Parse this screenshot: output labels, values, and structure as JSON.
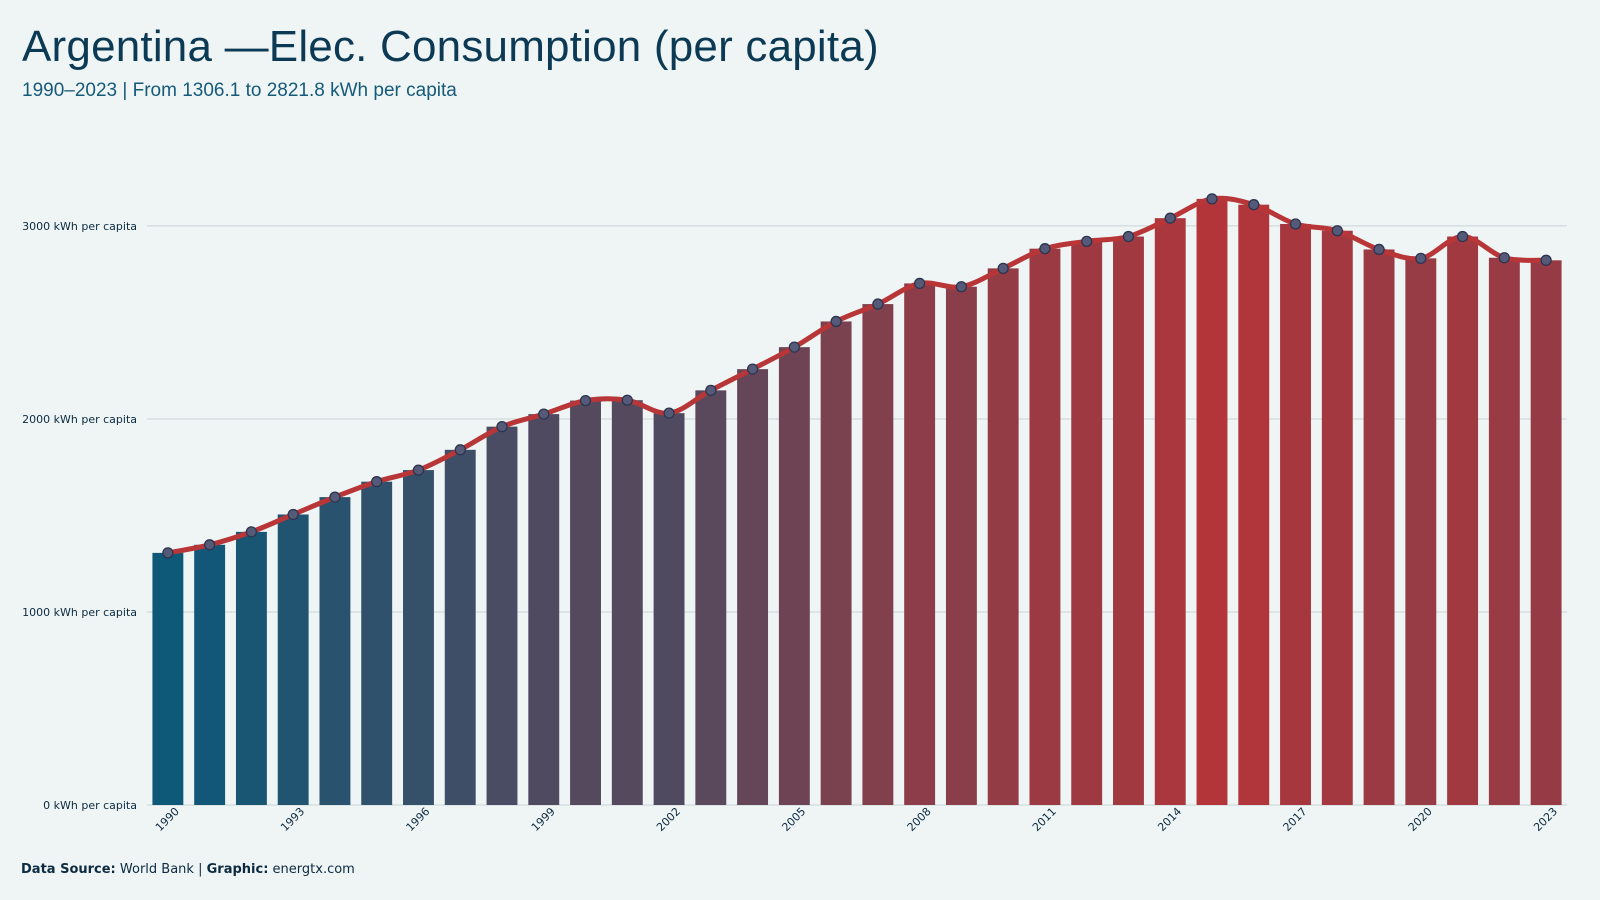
{
  "title": "Argentina —Elec. Consumption (per capita)",
  "subtitle": "1990–2023 | From 1306.1  to 2821.8  kWh per capita",
  "caption": {
    "source_label": "Data Source:",
    "source_value": "World Bank",
    "separator": "|",
    "graphic_label": "Graphic:",
    "graphic_value": "energtx.com"
  },
  "colors": {
    "background": "#eff5f5",
    "bar_start": "#0e5878",
    "bar_end": "#b3353a",
    "line": "#b83638",
    "marker_fill": "#555a78",
    "marker_stroke": "#2c3550",
    "grid": "#c9d2d6",
    "text": "#0c2a40"
  },
  "chart_data": {
    "type": "bar",
    "overlay": "line",
    "unit": "kWh per capita",
    "x": [
      1990,
      1991,
      1992,
      1993,
      1994,
      1995,
      1996,
      1997,
      1998,
      1999,
      2000,
      2001,
      2002,
      2003,
      2004,
      2005,
      2006,
      2007,
      2008,
      2009,
      2010,
      2011,
      2012,
      2013,
      2014,
      2015,
      2016,
      2017,
      2018,
      2019,
      2020,
      2021,
      2022,
      2023
    ],
    "values": [
      1306.1,
      1348,
      1415,
      1505,
      1595,
      1675,
      1735,
      1840,
      1960,
      2025,
      2095,
      2097,
      2030,
      2148,
      2258,
      2372,
      2505,
      2595,
      2702,
      2685,
      2780,
      2882,
      2920,
      2945,
      3040,
      3140,
      3110,
      3010,
      2975,
      2878,
      2832,
      2945,
      2835,
      2821.8
    ],
    "x_tick_labels": [
      "1990",
      "1993",
      "1996",
      "1999",
      "2002",
      "2005",
      "2008",
      "2011",
      "2014",
      "2017",
      "2020",
      "2023"
    ],
    "y_ticks": [
      0,
      1000,
      2000,
      3000
    ],
    "y_tick_labels": [
      "0 kWh per capita",
      "1000 kWh per capita",
      "2000 kWh per capita",
      "3000 kWh per capita"
    ],
    "ylim": [
      0,
      3300
    ],
    "grid": true,
    "legend": "none"
  }
}
